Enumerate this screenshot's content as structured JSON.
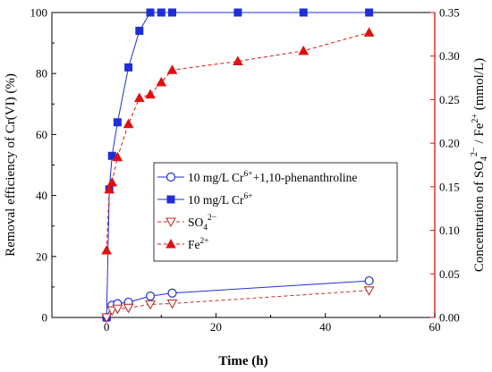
{
  "chart_data": {
    "type": "line",
    "xlabel": "Time (h)",
    "ylabel_left": "Removal efficiency of Cr(VI) (%)",
    "ylabel_right": "Concentration of SO₄²⁻ / Fe²⁺ (mmol/L)",
    "xlim": [
      -10,
      60
    ],
    "xticks": [
      0,
      20,
      40,
      60
    ],
    "ylim_left": [
      0,
      100
    ],
    "yticks_left": [
      0,
      20,
      40,
      60,
      80,
      100
    ],
    "ylim_right": [
      0,
      0.35
    ],
    "yticks_right": [
      "0.00",
      "0.05",
      "0.10",
      "0.15",
      "0.20",
      "0.25",
      "0.30",
      "0.35"
    ],
    "series": [
      {
        "name": "10 mg/L Cr6++1,10-phenanthroline",
        "axis": "left",
        "color": "#1f2fd6",
        "marker": "circle-open",
        "line": "solid",
        "x": [
          0,
          1,
          2,
          4,
          8,
          12,
          48
        ],
        "y": [
          0,
          4,
          4.5,
          5,
          7,
          8,
          12
        ]
      },
      {
        "name": "10 mg/L Cr6+",
        "axis": "left",
        "color": "#1f2fd6",
        "marker": "square-filled",
        "line": "solid",
        "x": [
          0,
          0.5,
          1,
          2,
          4,
          6,
          8,
          10,
          12,
          24,
          36,
          48
        ],
        "y": [
          0,
          42,
          53,
          64,
          82,
          94,
          100,
          100,
          100,
          100,
          100,
          100
        ]
      },
      {
        "name": "SO42−",
        "axis": "right",
        "color": "#c0302a",
        "marker": "triangle-down-open",
        "line": "dashed",
        "x": [
          0,
          1,
          2,
          4,
          8,
          12,
          48
        ],
        "y": [
          0.0,
          0.008,
          0.01,
          0.011,
          0.015,
          0.016,
          0.031
        ]
      },
      {
        "name": "Fe2+",
        "axis": "right",
        "color": "#e01010",
        "marker": "triangle-up-filled",
        "line": "dashed",
        "x": [
          0,
          0.5,
          1,
          2,
          4,
          6,
          8,
          10,
          12,
          24,
          36,
          48
        ],
        "y": [
          0.077,
          0.147,
          0.155,
          0.184,
          0.222,
          0.252,
          0.256,
          0.27,
          0.284,
          0.294,
          0.306,
          0.327
        ]
      }
    ],
    "legend": {
      "placement": "center-right",
      "entries": [
        {
          "text": "10 mg/L Cr",
          "sup": "6+",
          "after": "+1,10-phenanthroline"
        },
        {
          "text": "10 mg/L Cr",
          "sup": "6+",
          "after": ""
        },
        {
          "text": "SO",
          "sub": "4",
          "sup": "2−",
          "after": ""
        },
        {
          "text": "Fe",
          "sup": "2+",
          "after": ""
        }
      ]
    },
    "grid": false
  }
}
